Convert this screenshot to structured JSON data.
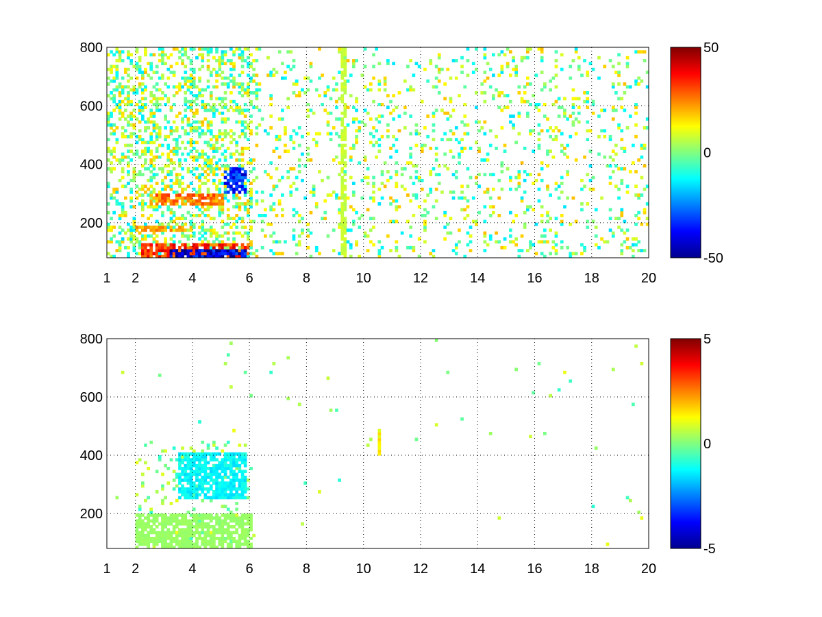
{
  "chart_data": [
    {
      "type": "heatmap",
      "title": "",
      "xlabel": "",
      "ylabel": "",
      "xlim": [
        1,
        20
      ],
      "ylim": [
        80,
        800
      ],
      "grid": true,
      "x_ticks": [
        "1",
        "2",
        "4",
        "6",
        "8",
        "10",
        "12",
        "14",
        "16",
        "18",
        "20"
      ],
      "x_tick_values": [
        1,
        2,
        4,
        6,
        8,
        10,
        12,
        14,
        16,
        18,
        20
      ],
      "y_ticks": [
        "200",
        "400",
        "600",
        "800"
      ],
      "y_tick_values": [
        200,
        400,
        600,
        800
      ],
      "colormap": "jet",
      "clim": [
        -50,
        50
      ],
      "colorbar_ticks": [
        "50",
        "0",
        "-50"
      ],
      "colorbar_tick_values": [
        50,
        0,
        -50
      ],
      "features": [
        {
          "x_range": [
            2.2,
            5.9
          ],
          "y_range": [
            80,
            120
          ],
          "value": 38
        },
        {
          "x_range": [
            3.2,
            5.8
          ],
          "y_range": [
            80,
            100
          ],
          "value": -48
        },
        {
          "x_range": [
            2.0,
            4.0
          ],
          "y_range": [
            170,
            185
          ],
          "value": 25
        },
        {
          "x_range": [
            2.5,
            5.0
          ],
          "y_range": [
            260,
            290
          ],
          "value": 30
        },
        {
          "x_range": [
            5.0,
            5.8
          ],
          "y_range": [
            300,
            380
          ],
          "value": -40
        },
        {
          "x_range": [
            9.1,
            9.3
          ],
          "y_range": [
            80,
            800
          ],
          "value": 8
        }
      ]
    },
    {
      "type": "heatmap",
      "title": "",
      "xlabel": "",
      "ylabel": "",
      "xlim": [
        1,
        20
      ],
      "ylim": [
        80,
        800
      ],
      "grid": true,
      "x_ticks": [
        "1",
        "2",
        "4",
        "6",
        "8",
        "10",
        "12",
        "14",
        "16",
        "18",
        "20"
      ],
      "x_tick_values": [
        1,
        2,
        4,
        6,
        8,
        10,
        12,
        14,
        16,
        18,
        20
      ],
      "y_ticks": [
        "200",
        "400",
        "600",
        "800"
      ],
      "y_tick_values": [
        200,
        400,
        600,
        800
      ],
      "colormap": "jet",
      "clim": [
        -5,
        5
      ],
      "colorbar_ticks": [
        "5",
        "0",
        "-5"
      ],
      "colorbar_tick_values": [
        5,
        0,
        -5
      ],
      "features": [
        {
          "x_range": [
            2.0,
            6.0
          ],
          "y_range": [
            80,
            190
          ],
          "value": 0.3
        },
        {
          "x_range": [
            3.5,
            5.8
          ],
          "y_range": [
            250,
            400
          ],
          "value": -1.5
        },
        {
          "x_range": [
            10.4,
            10.5
          ],
          "y_range": [
            400,
            490
          ],
          "value": 1.5
        }
      ]
    }
  ]
}
